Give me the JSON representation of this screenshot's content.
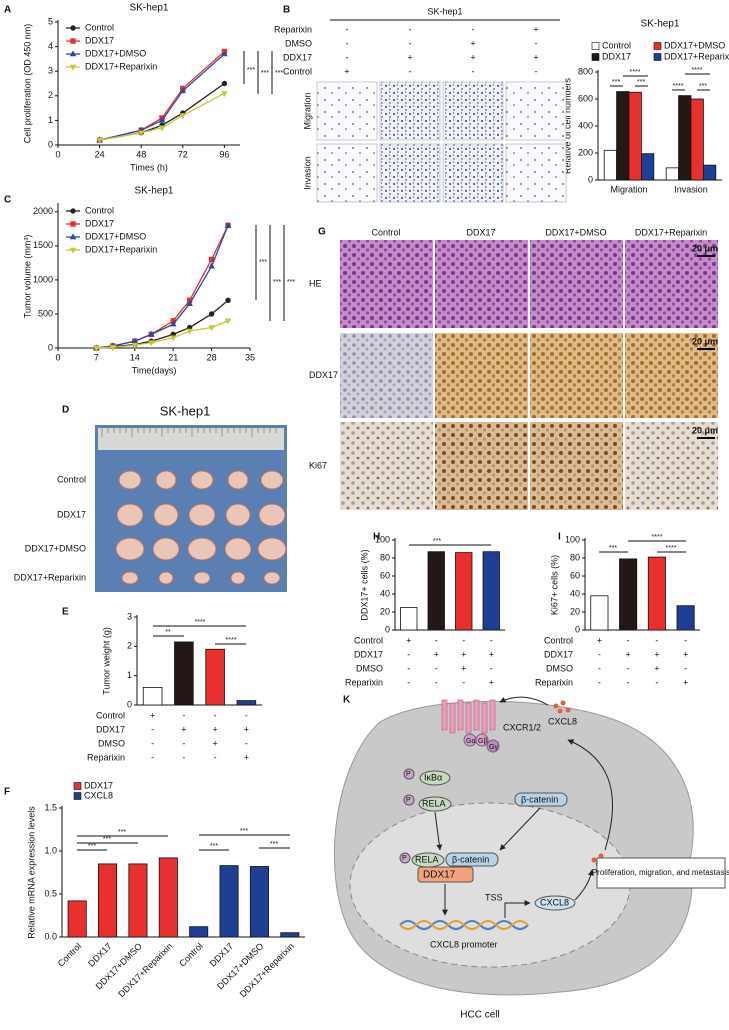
{
  "panel_letters": [
    "A",
    "B",
    "C",
    "D",
    "E",
    "F",
    "G",
    "H",
    "I",
    "K"
  ],
  "chart_data": [
    {
      "type": "line",
      "title": "SK-hep1",
      "xlabel": "Times (h)",
      "ylabel": "Cell proliferation (OD 450 nm)",
      "x": [
        24,
        48,
        60,
        72,
        96
      ],
      "xlim": [
        0,
        105
      ],
      "xticks": [
        0,
        24,
        48,
        72,
        96
      ],
      "ylim": [
        0,
        5
      ],
      "yticks": [
        0,
        1,
        2,
        3,
        4,
        5
      ],
      "legend": "upper left",
      "series": [
        {
          "name": "Control",
          "color": "#222222",
          "marker": "circle",
          "values": [
            0.2,
            0.5,
            0.8,
            1.3,
            2.5
          ]
        },
        {
          "name": "DDX17",
          "color": "#e8312f",
          "marker": "square",
          "values": [
            0.2,
            0.6,
            1.1,
            2.3,
            3.8
          ]
        },
        {
          "name": "DDX17+DMSO",
          "color": "#2b4ba0",
          "marker": "triangle",
          "values": [
            0.2,
            0.6,
            1.0,
            2.2,
            3.7
          ]
        },
        {
          "name": "DDX17+Reparixin",
          "color": "#c9c833",
          "marker": "triangle-down",
          "values": [
            0.2,
            0.5,
            0.7,
            1.2,
            2.1
          ]
        }
      ],
      "annotations": [
        "***",
        "***",
        "***"
      ]
    },
    {
      "type": "bar",
      "title": "SK-hep1",
      "ylabel": "Relative of cell numbers",
      "categories": [
        "Migration",
        "Invasion"
      ],
      "ylim": [
        0,
        800
      ],
      "yticks": [
        0,
        200,
        400,
        600,
        800
      ],
      "legend": "top",
      "series": [
        {
          "name": "Control",
          "color": "#ffffff",
          "values": [
            220,
            90
          ]
        },
        {
          "name": "DDX17",
          "color": "#231815",
          "values": [
            655,
            625
          ]
        },
        {
          "name": "DDX17+DMSO",
          "color": "#e8312f",
          "values": [
            650,
            600
          ]
        },
        {
          "name": "DDX17+Reparixin",
          "color": "#1f3f95",
          "values": [
            195,
            110
          ]
        }
      ],
      "annotations": [
        "***",
        "****",
        "***",
        "****",
        "****",
        "***"
      ]
    },
    {
      "type": "line",
      "title": "SK-hep1",
      "xlabel": "Time(days)",
      "ylabel": "Tumor volume (mm³)",
      "x": [
        7,
        10,
        14,
        17,
        21,
        24,
        28,
        31
      ],
      "xlim": [
        0,
        35
      ],
      "xticks": [
        0,
        7,
        14,
        21,
        28,
        35
      ],
      "ylim": [
        0,
        2100
      ],
      "yticks": [
        0,
        500,
        1000,
        1500,
        2000
      ],
      "legend": "upper left",
      "series": [
        {
          "name": "Control",
          "color": "#222222",
          "marker": "circle",
          "values": [
            0,
            20,
            50,
            100,
            200,
            300,
            500,
            700
          ]
        },
        {
          "name": "DDX17",
          "color": "#e8312f",
          "marker": "square",
          "values": [
            0,
            30,
            100,
            200,
            400,
            700,
            1300,
            1800
          ]
        },
        {
          "name": "DDX17+DMSO",
          "color": "#2b4ba0",
          "marker": "triangle",
          "values": [
            0,
            30,
            100,
            200,
            350,
            650,
            1200,
            1800
          ]
        },
        {
          "name": "DDX17+Reparixin",
          "color": "#c9c833",
          "marker": "triangle-down",
          "values": [
            0,
            10,
            40,
            80,
            150,
            250,
            300,
            400
          ]
        }
      ],
      "annotations": [
        "***",
        "***",
        "***"
      ]
    },
    {
      "type": "bar",
      "ylabel": "Tumor weight (g)",
      "values": [
        0.6,
        2.15,
        1.9,
        0.15
      ],
      "colors": [
        "#ffffff",
        "#231815",
        "#e8312f",
        "#1f3f95"
      ],
      "ylim": [
        0,
        3
      ],
      "yticks": [
        0,
        1,
        2,
        3
      ],
      "conditions": [
        {
          "name": "Control",
          "signs": [
            "+",
            "-",
            "-",
            "-"
          ]
        },
        {
          "name": "DDX17",
          "signs": [
            "-",
            "+",
            "+",
            "+"
          ]
        },
        {
          "name": "DMSO",
          "signs": [
            "-",
            "-",
            "+",
            "-"
          ]
        },
        {
          "name": "Reparixin",
          "signs": [
            "-",
            "-",
            "-",
            "+"
          ]
        }
      ],
      "annotations": [
        "**",
        "****",
        "****"
      ]
    },
    {
      "type": "bar",
      "ylabel": "Relative mRNA expression levels",
      "categories": [
        "Control",
        "DDX17",
        "DDX17+DMSO",
        "DDX17+Reparixin",
        "Control",
        "DDX17",
        "DDX17+DMSO",
        "DDX17+Reparixin"
      ],
      "xtick_rotation": 45,
      "ylim": [
        0,
        1.5
      ],
      "yticks": [
        {
          "value": 0,
          "label": "0.0"
        },
        0.5,
        {
          "value": 1,
          "label": "1.0"
        },
        1.5
      ],
      "legend": "top left",
      "series": [
        {
          "name": "DDX17",
          "color": "#e8312f",
          "values": [
            0.42,
            0.85,
            0.85,
            0.92,
            null,
            null,
            null,
            null
          ]
        },
        {
          "name": "CXCL8",
          "color": "#1f3f95",
          "values": [
            null,
            null,
            null,
            null,
            0.12,
            0.83,
            0.82,
            0.05
          ]
        }
      ],
      "annotations": [
        "***",
        "***",
        "***",
        "***",
        "***",
        "***"
      ]
    },
    {
      "type": "bar",
      "ylabel": "DDX17+ cells (%)",
      "values": [
        25,
        87,
        86,
        87
      ],
      "colors": [
        "#ffffff",
        "#231815",
        "#e8312f",
        "#1f3f95"
      ],
      "ylim": [
        0,
        100
      ],
      "yticks": [
        0,
        20,
        40,
        60,
        80,
        100
      ],
      "conditions": [
        {
          "name": "Control",
          "signs": [
            "+",
            "-",
            "-",
            "-"
          ]
        },
        {
          "name": "DDX17",
          "signs": [
            "-",
            "+",
            "+",
            "+"
          ]
        },
        {
          "name": "DMSO",
          "signs": [
            "-",
            "-",
            "+",
            "-"
          ]
        },
        {
          "name": "Reparixin",
          "signs": [
            "-",
            "-",
            "-",
            "+"
          ]
        }
      ],
      "annotations": [
        "***"
      ]
    },
    {
      "type": "bar",
      "ylabel": "Ki67+ cells (%)",
      "values": [
        38,
        79,
        81,
        27
      ],
      "colors": [
        "#ffffff",
        "#231815",
        "#e8312f",
        "#1f3f95"
      ],
      "ylim": [
        0,
        100
      ],
      "yticks": [
        0,
        20,
        40,
        60,
        80,
        100
      ],
      "conditions": [
        {
          "name": "Control",
          "signs": [
            "+",
            "-",
            "-",
            "-"
          ]
        },
        {
          "name": "DDX17",
          "signs": [
            "-",
            "+",
            "+",
            "+"
          ]
        },
        {
          "name": "DMSO",
          "signs": [
            "-",
            "-",
            "+",
            "-"
          ]
        },
        {
          "name": "Reparixin",
          "signs": [
            "-",
            "-",
            "-",
            "+"
          ]
        }
      ],
      "annotations": [
        "***",
        "****",
        "****"
      ]
    }
  ],
  "micrographs_B": {
    "title": "SK-hep1",
    "rows": [
      "Migration",
      "Invasion"
    ],
    "conditions": [
      {
        "name": "Reparixin",
        "signs": [
          "-",
          "-",
          "-",
          "+"
        ]
      },
      {
        "name": "DMSO",
        "signs": [
          "-",
          "-",
          "+",
          "-"
        ]
      },
      {
        "name": "DDX17",
        "signs": [
          "-",
          "+",
          "+",
          "+"
        ]
      },
      {
        "name": "Control",
        "signs": [
          "+",
          "-",
          "-",
          "-"
        ]
      }
    ]
  },
  "photo_D": {
    "title": "SK-hep1",
    "rows": [
      "Control",
      "DDX17",
      "DDX17+DMSO",
      "DDX17+Reparixin"
    ]
  },
  "histology_G": {
    "columns": [
      "Control",
      "DDX17",
      "DDX17+DMSO",
      "DDX17+Reparixin"
    ],
    "rows": [
      "HE",
      "DDX17",
      "Ki67"
    ],
    "scale": "20 μm"
  },
  "diagram_K": {
    "receptor": "CXCR1/2",
    "g_alpha": "Gα",
    "g_beta": "Gβ",
    "g_gamma": "Gγ",
    "ligand": "CXCL8",
    "p": "P",
    "ikba": "IκBα",
    "rela": "RELA",
    "bcatenin": "β-catenin",
    "ddx17": "DDX17",
    "tss": "TSS",
    "promoter": "CXCL8 promoter",
    "outcome": "Proliferation, migration, and metastasis",
    "cell": "HCC cell"
  }
}
